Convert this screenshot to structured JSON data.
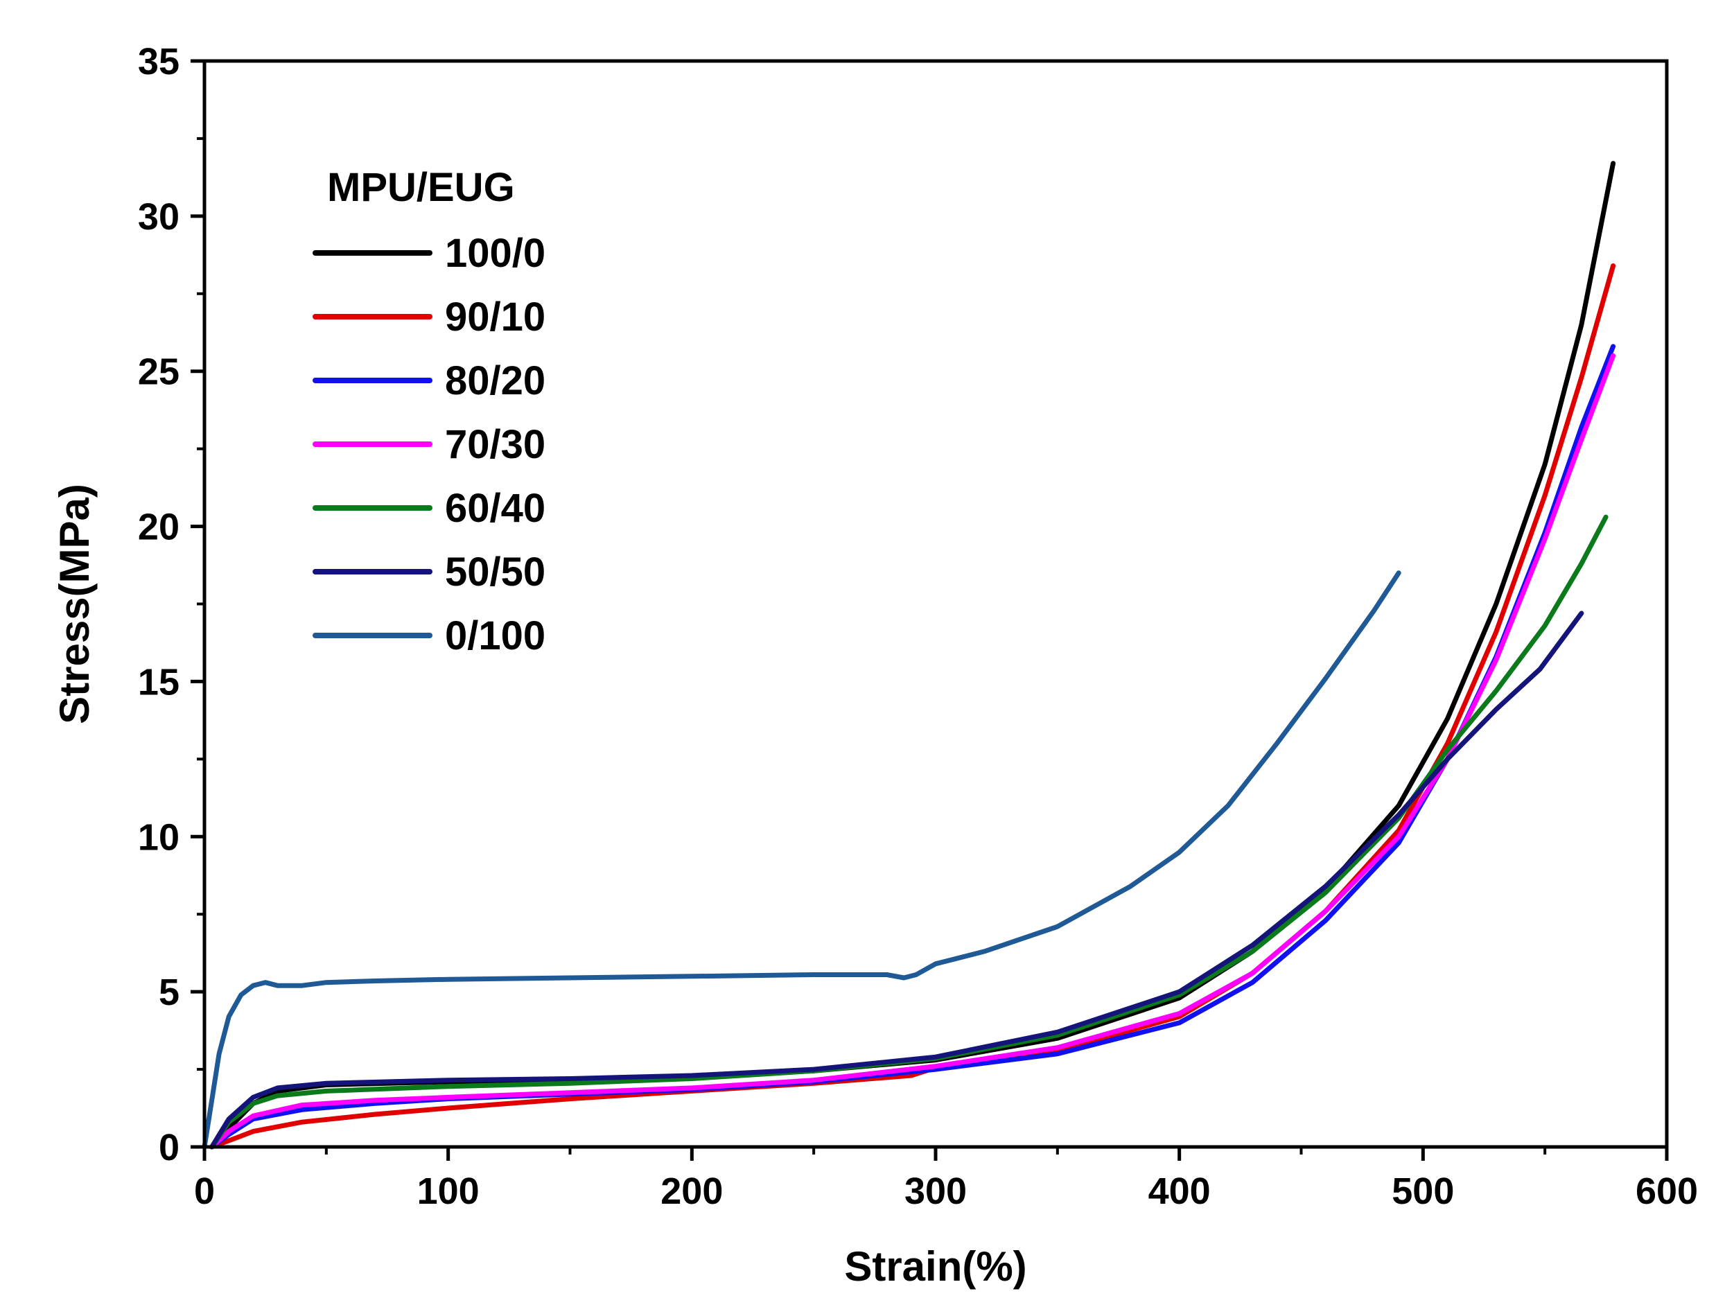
{
  "chart_data": {
    "type": "line",
    "title": "",
    "xlabel": "Strain(%)",
    "ylabel": "Stress(MPa)",
    "xlim": [
      0,
      600
    ],
    "ylim": [
      0,
      35
    ],
    "xticks": [
      0,
      100,
      200,
      300,
      400,
      500,
      600
    ],
    "yticks": [
      0,
      5,
      10,
      15,
      20,
      25,
      30,
      35
    ],
    "legend_title": "MPU/EUG",
    "legend_position": "top-left",
    "grid": false,
    "series": [
      {
        "name": "100/0",
        "color": "#000000",
        "points": [
          [
            3,
            0
          ],
          [
            10,
            0.6
          ],
          [
            20,
            1.4
          ],
          [
            30,
            1.8
          ],
          [
            50,
            2.0
          ],
          [
            100,
            2.1
          ],
          [
            150,
            2.15
          ],
          [
            200,
            2.25
          ],
          [
            250,
            2.45
          ],
          [
            300,
            2.8
          ],
          [
            350,
            3.5
          ],
          [
            400,
            4.8
          ],
          [
            430,
            6.3
          ],
          [
            460,
            8.3
          ],
          [
            490,
            11.0
          ],
          [
            510,
            13.8
          ],
          [
            530,
            17.5
          ],
          [
            550,
            22.0
          ],
          [
            565,
            26.5
          ],
          [
            578,
            31.7
          ]
        ]
      },
      {
        "name": "90/10",
        "color": "#e00000",
        "points": [
          [
            3,
            0
          ],
          [
            10,
            0.2
          ],
          [
            20,
            0.5
          ],
          [
            40,
            0.8
          ],
          [
            70,
            1.05
          ],
          [
            100,
            1.25
          ],
          [
            150,
            1.55
          ],
          [
            200,
            1.8
          ],
          [
            250,
            2.05
          ],
          [
            290,
            2.3
          ],
          [
            300,
            2.55
          ],
          [
            350,
            3.1
          ],
          [
            400,
            4.2
          ],
          [
            430,
            5.6
          ],
          [
            460,
            7.6
          ],
          [
            490,
            10.2
          ],
          [
            510,
            13.0
          ],
          [
            530,
            16.6
          ],
          [
            550,
            21.0
          ],
          [
            565,
            24.8
          ],
          [
            578,
            28.4
          ]
        ]
      },
      {
        "name": "80/20",
        "color": "#1010f0",
        "points": [
          [
            3,
            0
          ],
          [
            10,
            0.4
          ],
          [
            20,
            0.9
          ],
          [
            40,
            1.2
          ],
          [
            70,
            1.4
          ],
          [
            100,
            1.55
          ],
          [
            150,
            1.7
          ],
          [
            200,
            1.85
          ],
          [
            250,
            2.1
          ],
          [
            300,
            2.5
          ],
          [
            350,
            3.0
          ],
          [
            400,
            4.0
          ],
          [
            430,
            5.3
          ],
          [
            460,
            7.3
          ],
          [
            490,
            9.8
          ],
          [
            510,
            12.5
          ],
          [
            530,
            15.8
          ],
          [
            550,
            19.8
          ],
          [
            565,
            23.2
          ],
          [
            578,
            25.8
          ]
        ]
      },
      {
        "name": "70/30",
        "color": "#ff00ff",
        "points": [
          [
            3,
            0
          ],
          [
            10,
            0.5
          ],
          [
            20,
            1.0
          ],
          [
            40,
            1.35
          ],
          [
            70,
            1.5
          ],
          [
            100,
            1.6
          ],
          [
            150,
            1.75
          ],
          [
            200,
            1.9
          ],
          [
            250,
            2.15
          ],
          [
            300,
            2.6
          ],
          [
            350,
            3.2
          ],
          [
            400,
            4.3
          ],
          [
            430,
            5.6
          ],
          [
            460,
            7.6
          ],
          [
            490,
            10.0
          ],
          [
            510,
            12.5
          ],
          [
            530,
            15.7
          ],
          [
            550,
            19.6
          ],
          [
            565,
            22.8
          ],
          [
            578,
            25.5
          ]
        ]
      },
      {
        "name": "60/40",
        "color": "#0a7a1a",
        "points": [
          [
            3,
            0
          ],
          [
            10,
            0.8
          ],
          [
            20,
            1.4
          ],
          [
            30,
            1.65
          ],
          [
            50,
            1.8
          ],
          [
            100,
            1.95
          ],
          [
            150,
            2.05
          ],
          [
            200,
            2.2
          ],
          [
            250,
            2.45
          ],
          [
            300,
            2.85
          ],
          [
            350,
            3.6
          ],
          [
            400,
            4.9
          ],
          [
            430,
            6.3
          ],
          [
            460,
            8.2
          ],
          [
            490,
            10.6
          ],
          [
            510,
            12.8
          ],
          [
            530,
            14.7
          ],
          [
            550,
            16.8
          ],
          [
            565,
            18.8
          ],
          [
            575,
            20.3
          ]
        ]
      },
      {
        "name": "50/50",
        "color": "#14147a",
        "points": [
          [
            3,
            0
          ],
          [
            10,
            0.9
          ],
          [
            20,
            1.6
          ],
          [
            30,
            1.9
          ],
          [
            50,
            2.05
          ],
          [
            100,
            2.15
          ],
          [
            150,
            2.2
          ],
          [
            200,
            2.3
          ],
          [
            250,
            2.5
          ],
          [
            300,
            2.9
          ],
          [
            350,
            3.7
          ],
          [
            400,
            5.0
          ],
          [
            430,
            6.5
          ],
          [
            460,
            8.4
          ],
          [
            490,
            10.7
          ],
          [
            510,
            12.5
          ],
          [
            530,
            14.1
          ],
          [
            548,
            15.4
          ],
          [
            565,
            17.2
          ]
        ]
      },
      {
        "name": "0/100",
        "color": "#1f5a96",
        "points": [
          [
            0,
            0
          ],
          [
            3,
            1.5
          ],
          [
            6,
            3.0
          ],
          [
            10,
            4.2
          ],
          [
            15,
            4.9
          ],
          [
            20,
            5.2
          ],
          [
            25,
            5.3
          ],
          [
            30,
            5.2
          ],
          [
            40,
            5.2
          ],
          [
            50,
            5.3
          ],
          [
            70,
            5.35
          ],
          [
            100,
            5.4
          ],
          [
            150,
            5.45
          ],
          [
            200,
            5.5
          ],
          [
            250,
            5.55
          ],
          [
            280,
            5.55
          ],
          [
            287,
            5.45
          ],
          [
            292,
            5.55
          ],
          [
            300,
            5.9
          ],
          [
            320,
            6.3
          ],
          [
            350,
            7.1
          ],
          [
            380,
            8.4
          ],
          [
            400,
            9.5
          ],
          [
            420,
            11.0
          ],
          [
            440,
            13.0
          ],
          [
            460,
            15.1
          ],
          [
            480,
            17.3
          ],
          [
            490,
            18.5
          ]
        ]
      }
    ]
  }
}
